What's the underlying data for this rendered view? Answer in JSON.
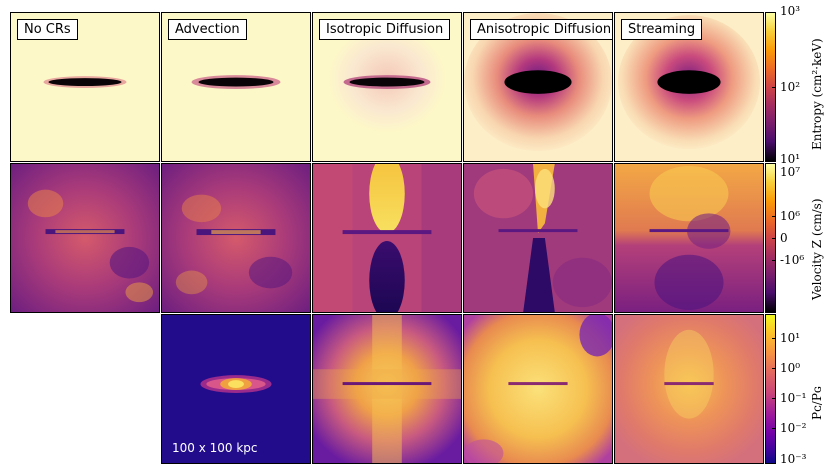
{
  "columns": [
    {
      "title": "No CRs"
    },
    {
      "title": "Advection"
    },
    {
      "title": "Isotropic Diffusion"
    },
    {
      "title": "Anisotropic Diffusion"
    },
    {
      "title": "Streaming"
    }
  ],
  "scale_label": "100 x 100 kpc",
  "colorbars": [
    {
      "label": "Entropy (cm²·keV)",
      "ticks": [
        "10³",
        "10²",
        "10¹"
      ]
    },
    {
      "label": "Velocity Z (cm/s)",
      "ticks": [
        "10⁷",
        "10⁶",
        "0",
        "-10⁶"
      ]
    },
    {
      "label": "Pᴄ/Pɢ",
      "ticks": [
        "10¹",
        "10⁰",
        "10⁻¹",
        "10⁻²",
        "10⁻³"
      ]
    }
  ],
  "colors": {
    "inferno_dark": "#0d0887",
    "inferno_purple": "#5c068c",
    "inferno_magenta": "#b42f8f",
    "inferno_orange": "#f0863e",
    "inferno_yellow": "#fbe17a",
    "pale": "#fdf8c8"
  }
}
